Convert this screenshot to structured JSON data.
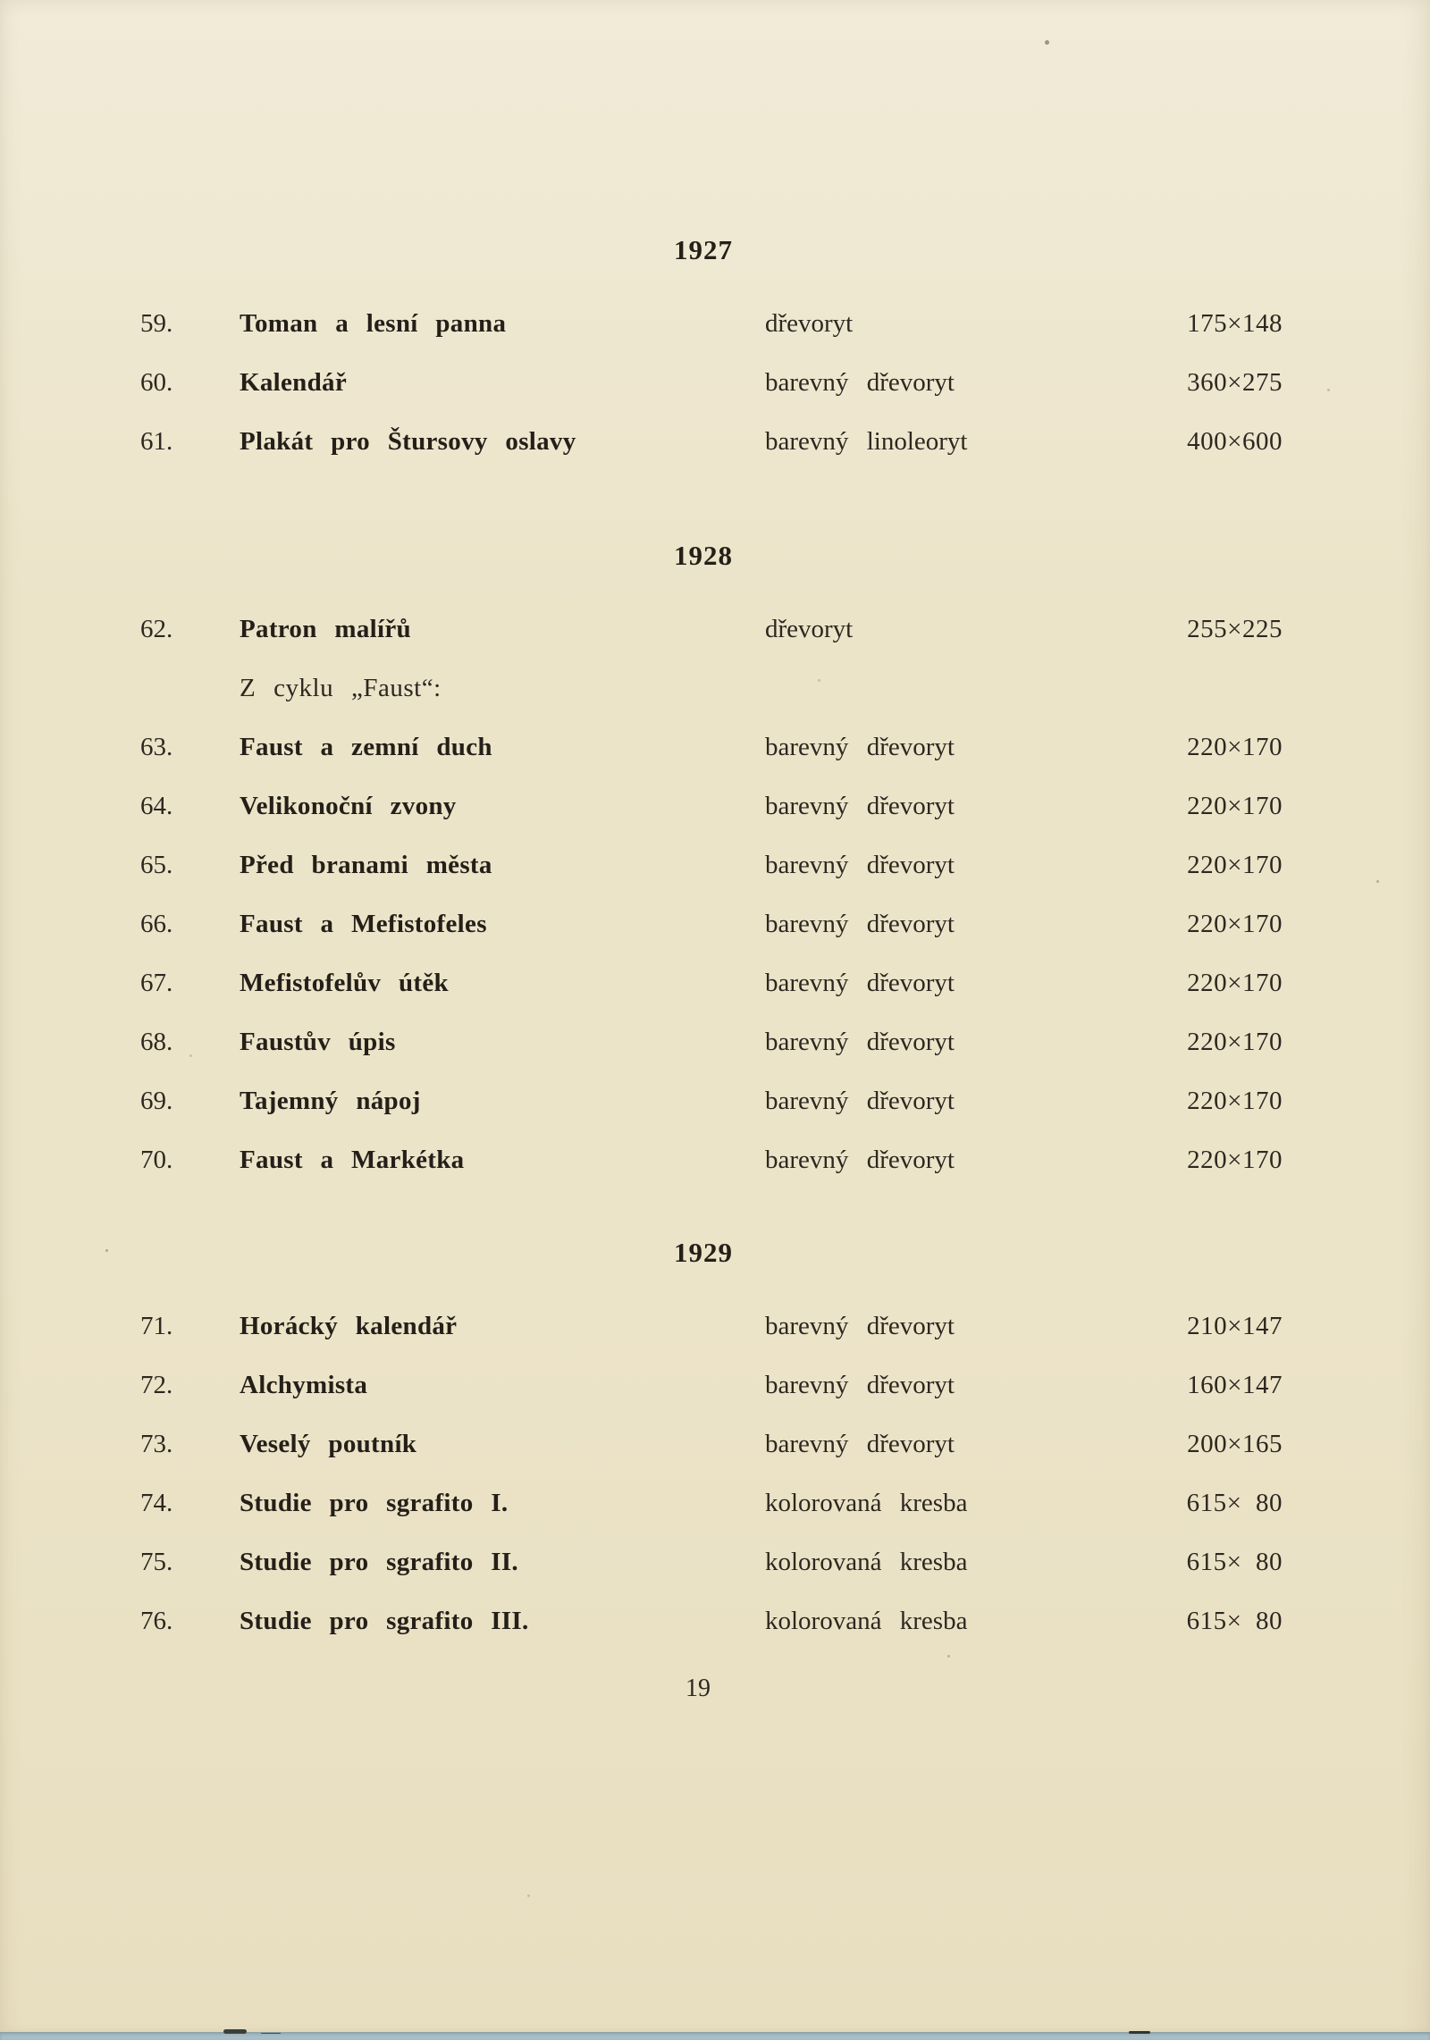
{
  "colors": {
    "paper": "#ece4c9",
    "paper-light": "#f1ebd8",
    "paper-dark": "#e8dec0",
    "ink": "#2d2720",
    "ink-bold": "#241f18",
    "edge": "#a9bfc7"
  },
  "catalog": {
    "page_number": "19",
    "sections": [
      {
        "year": "1927",
        "items": [
          {
            "no": "59.",
            "title": "Toman a lesní panna",
            "technique": "dřevoryt",
            "size": "175×148"
          },
          {
            "no": "60.",
            "title": "Kalendář",
            "technique": "barevný dřevoryt",
            "size": "360×275"
          },
          {
            "no": "61.",
            "title": "Plakát pro Štursovy oslavy",
            "technique": "barevný linoleoryt",
            "size": "400×600"
          }
        ]
      },
      {
        "year": "1928",
        "note": "Z cyklu „Faust“:",
        "items": [
          {
            "no": "62.",
            "title": "Patron malířů",
            "technique": "dřevoryt",
            "size": "255×225"
          },
          {
            "no": "63.",
            "title": "Faust a zemní duch",
            "technique": "barevný dřevoryt",
            "size": "220×170"
          },
          {
            "no": "64.",
            "title": "Velikonoční zvony",
            "technique": "barevný dřevoryt",
            "size": "220×170"
          },
          {
            "no": "65.",
            "title": "Před branami města",
            "technique": "barevný dřevoryt",
            "size": "220×170"
          },
          {
            "no": "66.",
            "title": "Faust a Mefistofeles",
            "technique": "barevný dřevoryt",
            "size": "220×170"
          },
          {
            "no": "67.",
            "title": "Mefistofelův útěk",
            "technique": "barevný dřevoryt",
            "size": "220×170"
          },
          {
            "no": "68.",
            "title": "Faustův úpis",
            "technique": "barevný dřevoryt",
            "size": "220×170"
          },
          {
            "no": "69.",
            "title": "Tajemný nápoj",
            "technique": "barevný dřevoryt",
            "size": "220×170"
          },
          {
            "no": "70.",
            "title": "Faust a Markétka",
            "technique": "barevný dřevoryt",
            "size": "220×170"
          }
        ]
      },
      {
        "year": "1929",
        "items": [
          {
            "no": "71.",
            "title": "Horácký kalendář",
            "technique": "barevný dřevoryt",
            "size": "210×147"
          },
          {
            "no": "72.",
            "title": "Alchymista",
            "technique": "barevný dřevoryt",
            "size": "160×147"
          },
          {
            "no": "73.",
            "title": "Veselý poutník",
            "technique": "barevný dřevoryt",
            "size": "200×165"
          },
          {
            "no": "74.",
            "title": "Studie pro sgrafito I.",
            "technique": "kolorovaná kresba",
            "size": "615×  80"
          },
          {
            "no": "75.",
            "title": "Studie pro sgrafito II.",
            "technique": "kolorovaná kresba",
            "size": "615×  80"
          },
          {
            "no": "76.",
            "title": "Studie pro sgrafito III.",
            "technique": "kolorovaná kresba",
            "size": "615×  80"
          }
        ]
      }
    ]
  }
}
